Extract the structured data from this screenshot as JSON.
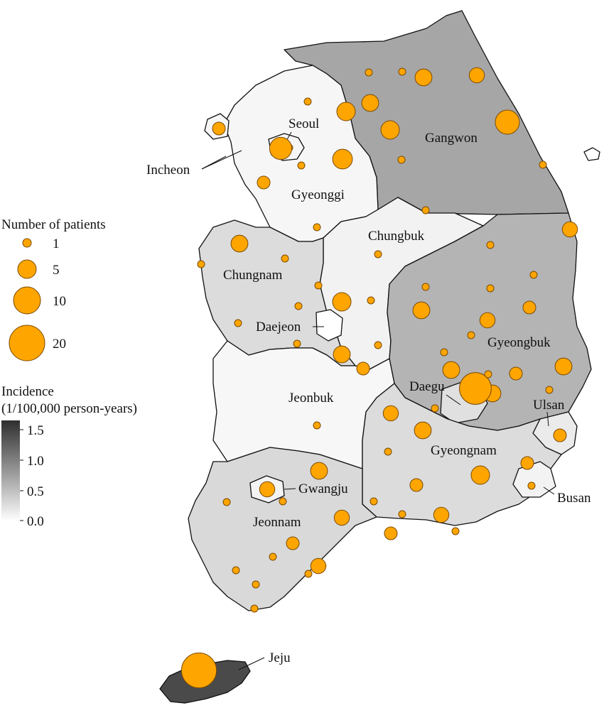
{
  "regions": [
    {
      "id": "gangwon",
      "name": "Gangwon",
      "incidence": 1.05,
      "color": "#a6a6a6"
    },
    {
      "id": "gyeonggi",
      "name": "Gyeonggi",
      "incidence": 0.05,
      "color": "#f6f6f6"
    },
    {
      "id": "seoul",
      "name": "Seoul",
      "incidence": 0.05,
      "color": "#f6f6f6"
    },
    {
      "id": "incheon",
      "name": "Incheon",
      "incidence": 0.05,
      "color": "#f6f6f6"
    },
    {
      "id": "chungbuk",
      "name": "Chungbuk",
      "incidence": 0.1,
      "color": "#f2f2f2"
    },
    {
      "id": "chungnam",
      "name": "Chungnam",
      "incidence": 0.35,
      "color": "#dcdcdc"
    },
    {
      "id": "daejeon",
      "name": "Daejeon",
      "incidence": 0.0,
      "color": "#ffffff"
    },
    {
      "id": "gyeongbuk",
      "name": "Gyeongbuk",
      "incidence": 0.85,
      "color": "#b4b4b4"
    },
    {
      "id": "daegu",
      "name": "Daegu",
      "incidence": 0.3,
      "color": "#e0e0e0"
    },
    {
      "id": "ulsan",
      "name": "Ulsan",
      "incidence": 0.2,
      "color": "#ebebeb"
    },
    {
      "id": "jeonbuk",
      "name": "Jeonbuk",
      "incidence": 0.05,
      "color": "#f7f7f7"
    },
    {
      "id": "gyeongnam",
      "name": "Gyeongnam",
      "incidence": 0.35,
      "color": "#dcdcdc"
    },
    {
      "id": "busan",
      "name": "Busan",
      "incidence": 0.1,
      "color": "#f3f3f3"
    },
    {
      "id": "gwangju",
      "name": "Gwangju",
      "incidence": 0.1,
      "color": "#f3f3f3"
    },
    {
      "id": "jeonnam",
      "name": "Jeonnam",
      "incidence": 0.35,
      "color": "#d9d9d9"
    },
    {
      "id": "jeju",
      "name": "Jeju",
      "incidence": 1.6,
      "color": "#4a4a4a"
    }
  ],
  "legend_size": {
    "title": "Number of patients",
    "entries": [
      {
        "label": "1",
        "value": 1
      },
      {
        "label": "5",
        "value": 5
      },
      {
        "label": "10",
        "value": 10
      },
      {
        "label": "20",
        "value": 20
      }
    ]
  },
  "legend_color": {
    "title_line1": "Incidence",
    "title_line2": "(1/100,000 person-years)",
    "ticks": [
      "1.5",
      "1.0",
      "0.5",
      "0.0"
    ],
    "min": 0.0,
    "max": 1.6,
    "color_low": "#ffffff",
    "color_high": "#2e2e2e"
  },
  "bubble_color": "#FFA500",
  "patients": [
    2,
    1,
    1,
    8,
    1,
    2,
    6,
    5,
    1,
    4,
    4,
    1,
    1,
    5,
    1,
    10,
    3,
    1,
    3,
    1,
    1,
    1,
    4,
    1,
    1,
    1,
    1,
    4,
    1,
    1,
    5,
    1,
    1,
    2,
    4,
    1,
    1,
    2,
    1,
    3,
    1,
    1,
    4,
    2,
    4,
    1,
    4,
    20,
    1,
    1,
    3,
    4,
    1,
    2,
    1,
    2,
    5,
    1,
    2,
    4,
    1,
    3,
    1,
    1,
    3,
    3,
    2,
    1,
    1,
    2,
    1,
    1,
    3,
    1,
    1,
    1,
    25
  ]
}
